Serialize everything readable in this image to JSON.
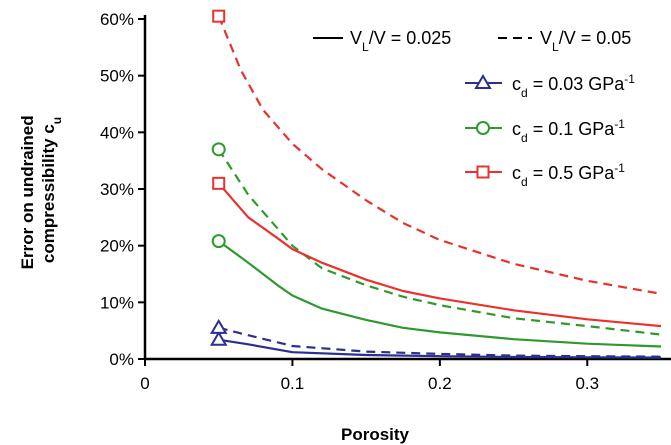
{
  "chart_data": {
    "type": "line",
    "xlabel": "Porosity",
    "ylabel_line1": "Error on undrained",
    "ylabel_line2": "compressibility c",
    "ylabel_sub": "u",
    "xlim": [
      0,
      0.35
    ],
    "ylim": [
      0,
      60
    ],
    "xticks": [
      0,
      0.1,
      0.2,
      0.3
    ],
    "xtick_labels": [
      "0",
      "0.1",
      "0.2",
      "0.3"
    ],
    "yticks": [
      0,
      10,
      20,
      30,
      40,
      50,
      60
    ],
    "ytick_labels": [
      "0%",
      "10%",
      "20%",
      "30%",
      "40%",
      "50%",
      "60%"
    ],
    "legend_linestyle": [
      {
        "text": "V",
        "sub": "L",
        "rest": "/V = 0.025",
        "dash": "solid"
      },
      {
        "text": "V",
        "sub": "L",
        "rest": "/V = 0.05",
        "dash": "dashed"
      }
    ],
    "legend_cd": [
      {
        "pre": "c",
        "sub": "d",
        "mid": " = 0.03 GPa",
        "sup": "-1",
        "marker": "triangle",
        "color": "#2b2f8f"
      },
      {
        "pre": "c",
        "sub": "d",
        "mid": " = 0.1 GPa",
        "sup": "-1",
        "marker": "circle",
        "color": "#2e9a2e"
      },
      {
        "pre": "c",
        "sub": "d",
        "mid": " = 0.5 GPa",
        "sup": "-1",
        "marker": "square",
        "color": "#e8322d"
      }
    ],
    "series": [
      {
        "cd": 0.03,
        "ratio": 0.025,
        "color": "#2b2f8f",
        "dash": "solid",
        "marker": "triangle",
        "x": [
          0.05,
          0.07,
          0.1,
          0.15,
          0.2,
          0.25,
          0.3,
          0.35
        ],
        "y": [
          3.4,
          2.6,
          1.2,
          0.7,
          0.5,
          0.35,
          0.3,
          0.25
        ]
      },
      {
        "cd": 0.03,
        "ratio": 0.05,
        "color": "#2b2f8f",
        "dash": "dashed",
        "marker": "triangle",
        "x": [
          0.05,
          0.07,
          0.1,
          0.15,
          0.2,
          0.25,
          0.3,
          0.35
        ],
        "y": [
          5.5,
          4.2,
          2.3,
          1.3,
          0.9,
          0.6,
          0.5,
          0.4
        ]
      },
      {
        "cd": 0.1,
        "ratio": 0.025,
        "color": "#2e9a2e",
        "dash": "solid",
        "marker": "circle",
        "x": [
          0.05,
          0.07,
          0.09,
          0.1,
          0.12,
          0.15,
          0.175,
          0.2,
          0.25,
          0.3,
          0.35
        ],
        "y": [
          20.8,
          17.0,
          13.0,
          11.2,
          8.9,
          6.9,
          5.5,
          4.7,
          3.5,
          2.7,
          2.2
        ]
      },
      {
        "cd": 0.1,
        "ratio": 0.05,
        "color": "#2e9a2e",
        "dash": "dashed",
        "marker": "circle",
        "x": [
          0.05,
          0.07,
          0.09,
          0.1,
          0.12,
          0.15,
          0.175,
          0.2,
          0.25,
          0.3,
          0.35
        ],
        "y": [
          37.0,
          29.0,
          23.0,
          20.0,
          16.0,
          13.0,
          11.0,
          9.5,
          7.2,
          5.8,
          4.3
        ]
      },
      {
        "cd": 0.5,
        "ratio": 0.025,
        "color": "#e8322d",
        "dash": "solid",
        "marker": "square",
        "x": [
          0.05,
          0.07,
          0.09,
          0.1,
          0.12,
          0.15,
          0.175,
          0.2,
          0.25,
          0.3,
          0.35
        ],
        "y": [
          31.0,
          25.0,
          21.3,
          19.4,
          17.0,
          14.0,
          12.0,
          10.7,
          8.6,
          7.0,
          5.8
        ]
      },
      {
        "cd": 0.5,
        "ratio": 0.05,
        "color": "#e8322d",
        "dash": "dashed",
        "marker": "square",
        "x": [
          0.05,
          0.065,
          0.08,
          0.1,
          0.12,
          0.15,
          0.175,
          0.2,
          0.25,
          0.3,
          0.35
        ],
        "y": [
          60.5,
          51.0,
          44.0,
          38.0,
          33.5,
          28.0,
          24.0,
          21.0,
          16.8,
          13.8,
          11.5
        ]
      }
    ]
  }
}
